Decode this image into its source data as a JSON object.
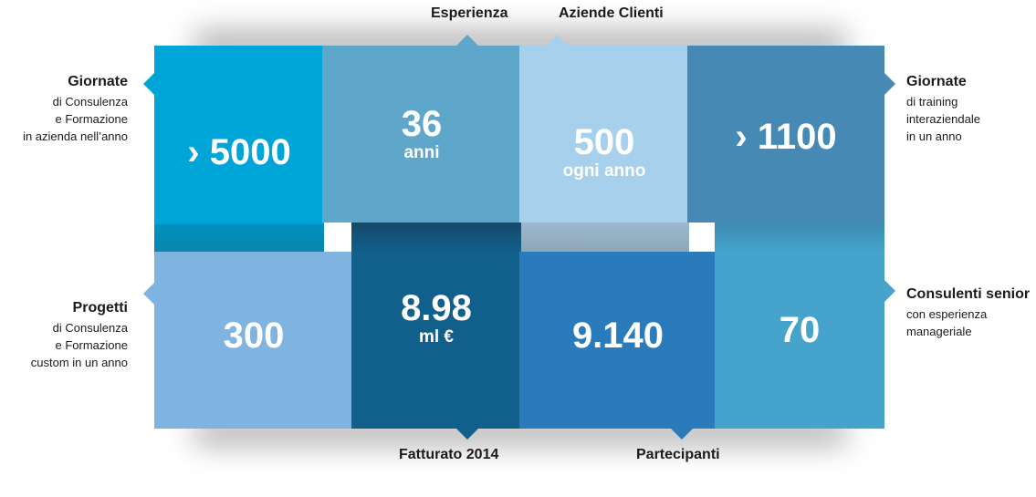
{
  "tiles": {
    "giornate_consulenza": {
      "value": "› 5000",
      "color": "#00a5d8"
    },
    "esperienza": {
      "value": "36",
      "sub": "anni",
      "color": "#5fa6cb"
    },
    "aziende_clienti": {
      "value": "500",
      "sub": "ogni anno",
      "color": "#a7d0ec"
    },
    "giornate_training": {
      "value": "› 1100",
      "color": "#4689b5"
    },
    "progetti": {
      "value": "300",
      "color": "#80b4e0"
    },
    "fatturato": {
      "value": "8.98",
      "sub": "ml €",
      "color": "#115f8b"
    },
    "partecipanti": {
      "value": "9.140",
      "color": "#2a7bbb"
    },
    "consulenti": {
      "value": "70",
      "color": "#45a3cc"
    }
  },
  "labels": {
    "esperienza": "Esperienza",
    "aziende_clienti": "Aziende Clienti",
    "fatturato": "Fatturato 2014",
    "partecipanti": "Partecipanti"
  },
  "captions": {
    "left_top": {
      "heading": "Giornate",
      "lines": [
        "di Consulenza",
        "e Formazione",
        "in azienda nell’anno"
      ]
    },
    "right_top": {
      "heading": "Giornate",
      "lines": [
        "di training",
        "interaziendale",
        "in un anno"
      ]
    },
    "left_bottom": {
      "heading": "Progetti",
      "lines": [
        "di Consulenza",
        "e Formazione",
        "custom in un anno"
      ]
    },
    "right_bottom": {
      "heading": "Consulenti senior",
      "lines": [
        "con esperienza",
        "manageriale"
      ]
    }
  }
}
